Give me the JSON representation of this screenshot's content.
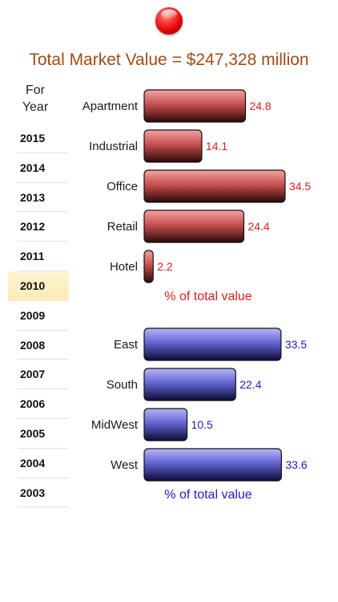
{
  "title": "Total Market Value = $247,328 million",
  "year_picker": {
    "header_line1": "For",
    "header_line2": "Year",
    "years": [
      "2015",
      "2014",
      "2013",
      "2012",
      "2011",
      "2010",
      "2009",
      "2008",
      "2007",
      "2006",
      "2005",
      "2004",
      "2003"
    ],
    "selected": "2010"
  },
  "colors": {
    "title": "#a24b14",
    "property_bar": "#e05a5a",
    "property_value": "#d42020",
    "region_bar": "#6a6ae8",
    "region_value": "#2020c0"
  },
  "chart_data": [
    {
      "type": "bar",
      "orientation": "horizontal",
      "categories": [
        "Apartment",
        "Industrial",
        "Office",
        "Retail",
        "Hotel"
      ],
      "values": [
        24.8,
        14.1,
        34.5,
        24.4,
        2.2
      ],
      "xlabel": "% of total value"
    },
    {
      "type": "bar",
      "orientation": "horizontal",
      "categories": [
        "East",
        "South",
        "MidWest",
        "West"
      ],
      "values": [
        33.5,
        22.4,
        10.5,
        33.6
      ],
      "xlabel": "% of total value"
    }
  ]
}
